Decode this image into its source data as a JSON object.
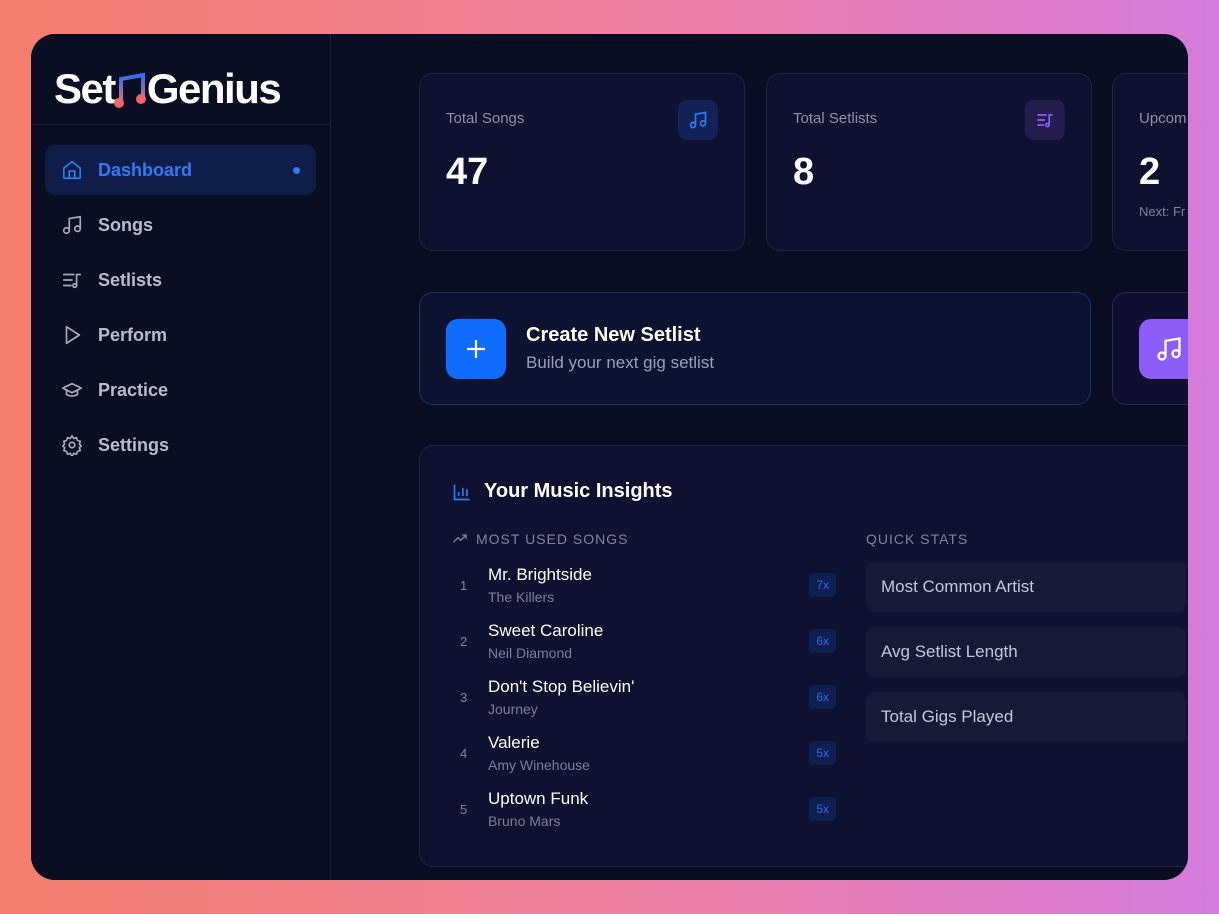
{
  "brand": {
    "name_left": "Set",
    "name_right": "Genius"
  },
  "sidebar": {
    "items": [
      {
        "label": "Dashboard",
        "icon": "home-icon",
        "active": true
      },
      {
        "label": "Songs",
        "icon": "music-note-icon"
      },
      {
        "label": "Setlists",
        "icon": "list-music-icon"
      },
      {
        "label": "Perform",
        "icon": "play-icon"
      },
      {
        "label": "Practice",
        "icon": "graduation-cap-icon"
      },
      {
        "label": "Settings",
        "icon": "gear-icon"
      }
    ]
  },
  "stats": [
    {
      "label": "Total Songs",
      "value": "47",
      "icon": "music-note-icon"
    },
    {
      "label": "Total Setlists",
      "value": "8",
      "icon": "list-music-icon"
    },
    {
      "label": "Upcom",
      "value": "2",
      "sub": "Next: Fr"
    }
  ],
  "actions": {
    "create_title": "Create New Setlist",
    "create_sub": "Build your next gig setlist"
  },
  "insights": {
    "title": "Your Music Insights",
    "most_used_label": "MOST USED SONGS",
    "quick_stats_label": "QUICK STATS",
    "songs": [
      {
        "rank": "1",
        "title": "Mr. Brightside",
        "artist": "The Killers",
        "count": "7x"
      },
      {
        "rank": "2",
        "title": "Sweet Caroline",
        "artist": "Neil Diamond",
        "count": "6x"
      },
      {
        "rank": "3",
        "title": "Don't Stop Believin'",
        "artist": "Journey",
        "count": "6x"
      },
      {
        "rank": "4",
        "title": "Valerie",
        "artist": "Amy Winehouse",
        "count": "5x"
      },
      {
        "rank": "5",
        "title": "Uptown Funk",
        "artist": "Bruno Mars",
        "count": "5x"
      }
    ],
    "quick_stats": [
      "Most Common Artist",
      "Avg Setlist Length",
      "Total Gigs Played"
    ]
  },
  "colors": {
    "accent": "#0f6cff",
    "purple": "#8b5cf6",
    "bg": "#0a0e22"
  }
}
